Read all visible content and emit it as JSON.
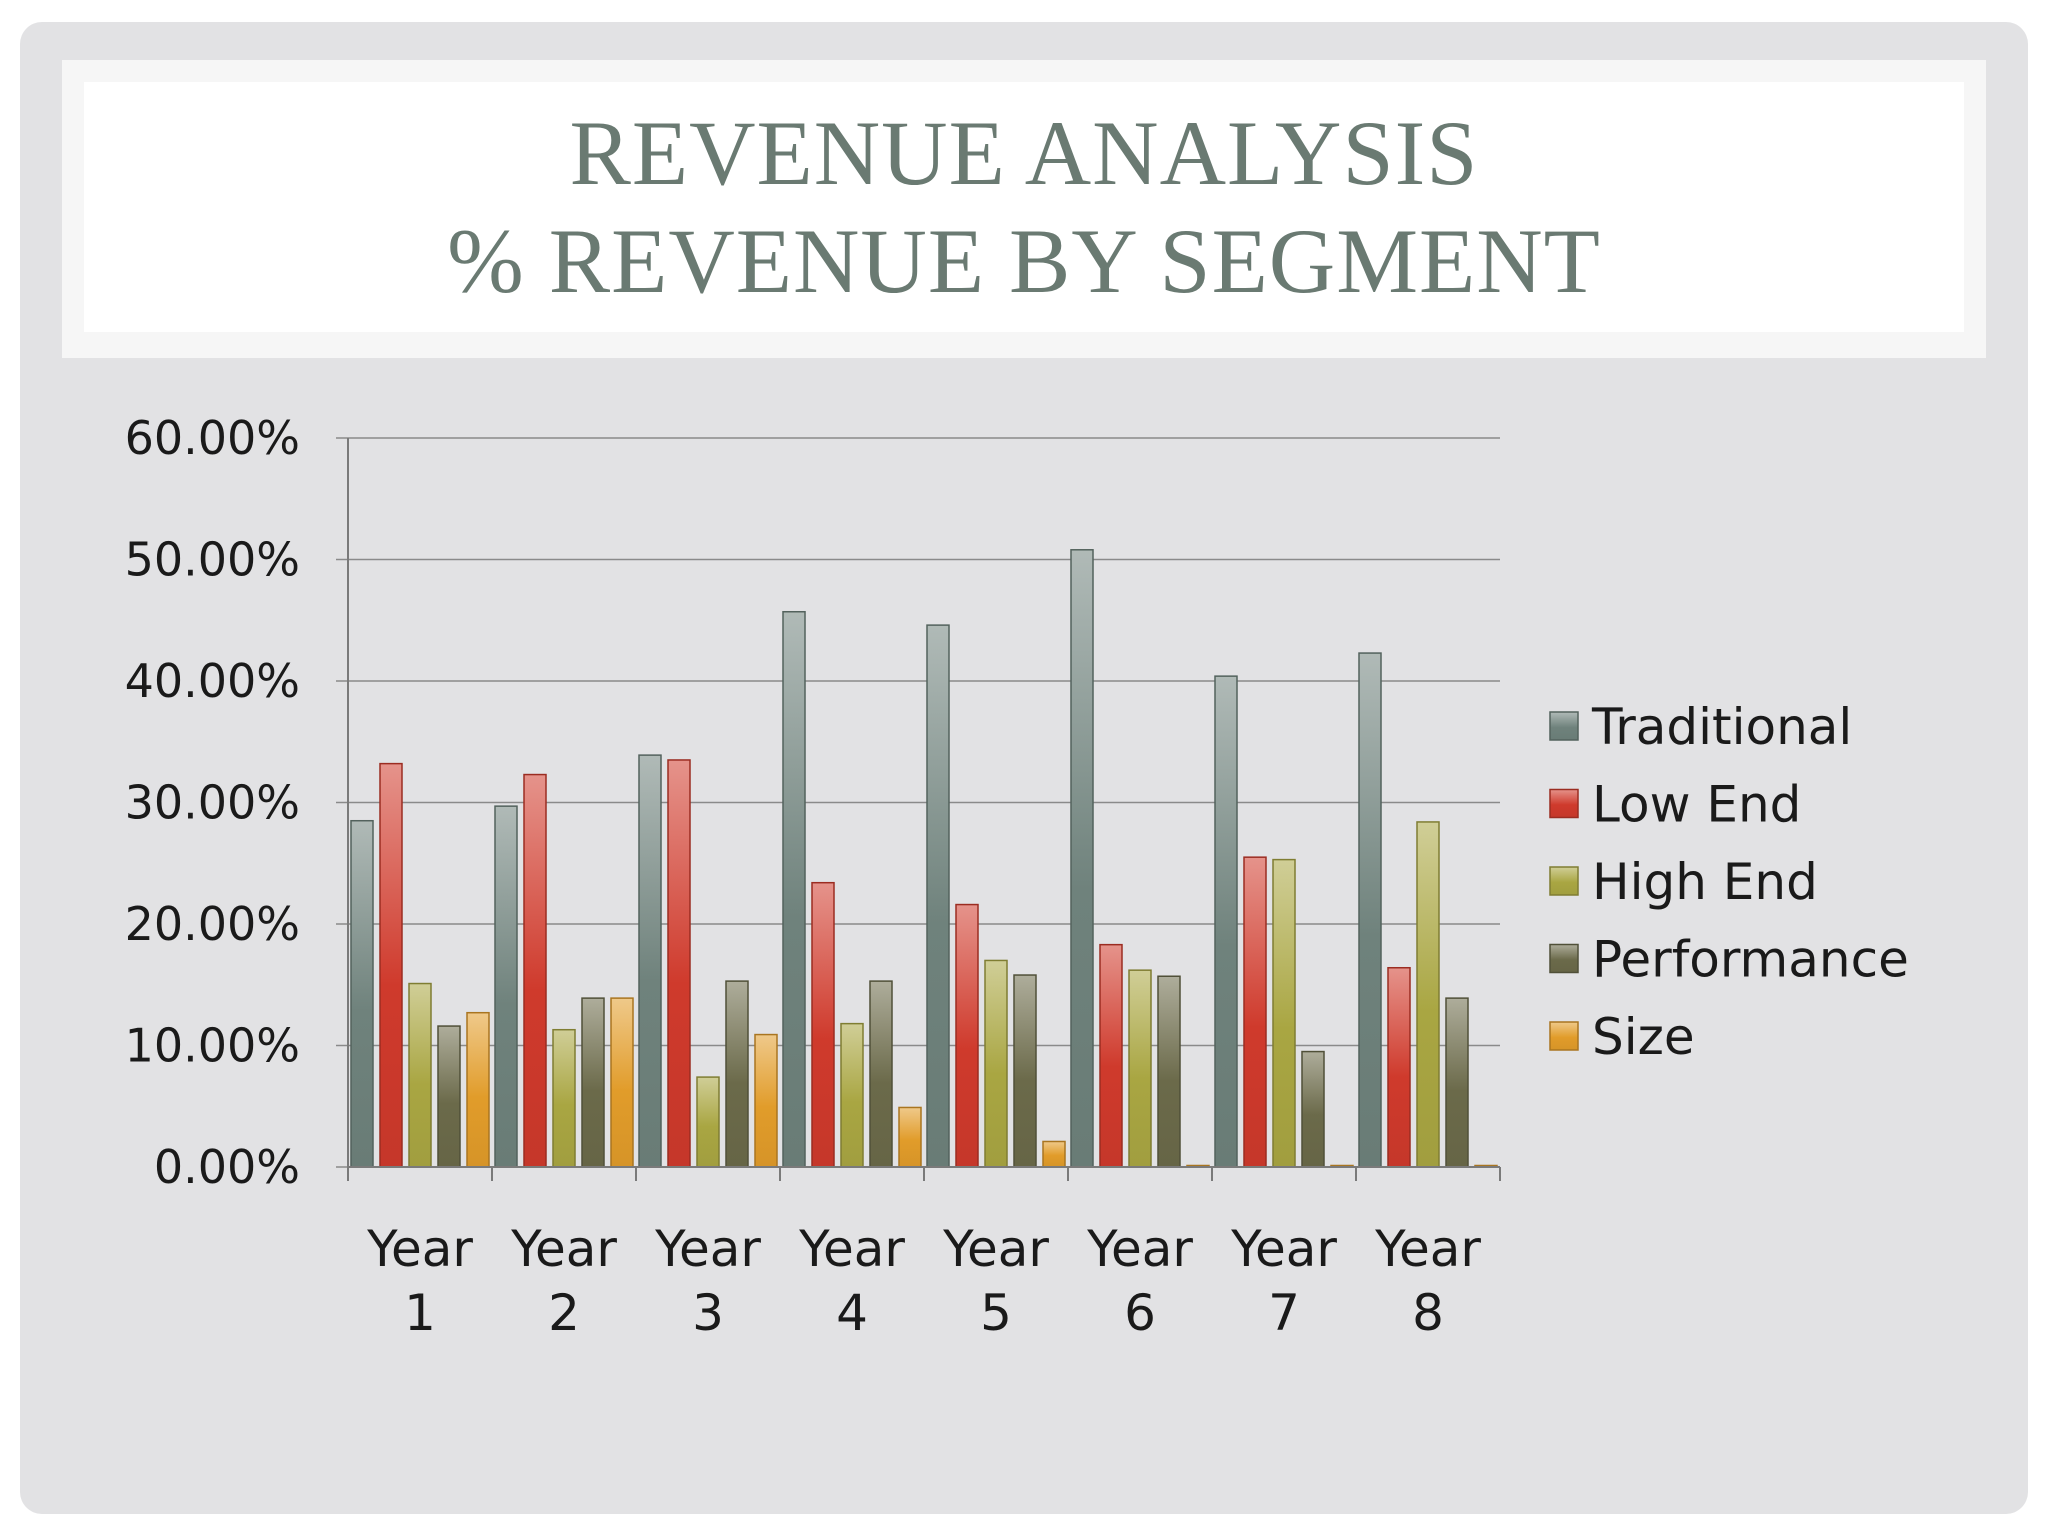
{
  "slide": {
    "title_line1": "REVENUE ANALYSIS",
    "title_line2": "% REVENUE BY SEGMENT"
  },
  "chart_data": {
    "type": "bar",
    "title": "",
    "xlabel": "",
    "ylabel": "",
    "ylim": [
      0,
      60
    ],
    "yticks": [
      "0.00%",
      "10.00%",
      "20.00%",
      "30.00%",
      "40.00%",
      "50.00%",
      "60.00%"
    ],
    "categories": [
      [
        "Year",
        "1"
      ],
      [
        "Year",
        "2"
      ],
      [
        "Year",
        "3"
      ],
      [
        "Year",
        "4"
      ],
      [
        "Year",
        "5"
      ],
      [
        "Year",
        "6"
      ],
      [
        "Year",
        "7"
      ],
      [
        "Year",
        "8"
      ]
    ],
    "grid": true,
    "legend_position": "right",
    "series": [
      {
        "name": "Traditional",
        "color": "#6f827c",
        "values": [
          28.5,
          29.7,
          33.9,
          45.7,
          44.6,
          50.8,
          40.4,
          42.3
        ]
      },
      {
        "name": "Low End",
        "color": "#cf3a2c",
        "values": [
          33.2,
          32.3,
          33.5,
          23.4,
          21.6,
          18.3,
          25.5,
          16.4
        ]
      },
      {
        "name": "High End",
        "color": "#a9a642",
        "values": [
          15.1,
          11.3,
          7.4,
          11.8,
          17.0,
          16.2,
          25.3,
          28.4
        ]
      },
      {
        "name": "Performance",
        "color": "#6b6a4a",
        "values": [
          11.6,
          13.9,
          15.3,
          15.3,
          15.8,
          15.7,
          9.5,
          13.9
        ]
      },
      {
        "name": "Size",
        "color": "#e19c2a",
        "values": [
          12.7,
          13.9,
          10.9,
          4.9,
          2.1,
          0.1,
          0.1,
          0.1
        ]
      }
    ]
  }
}
